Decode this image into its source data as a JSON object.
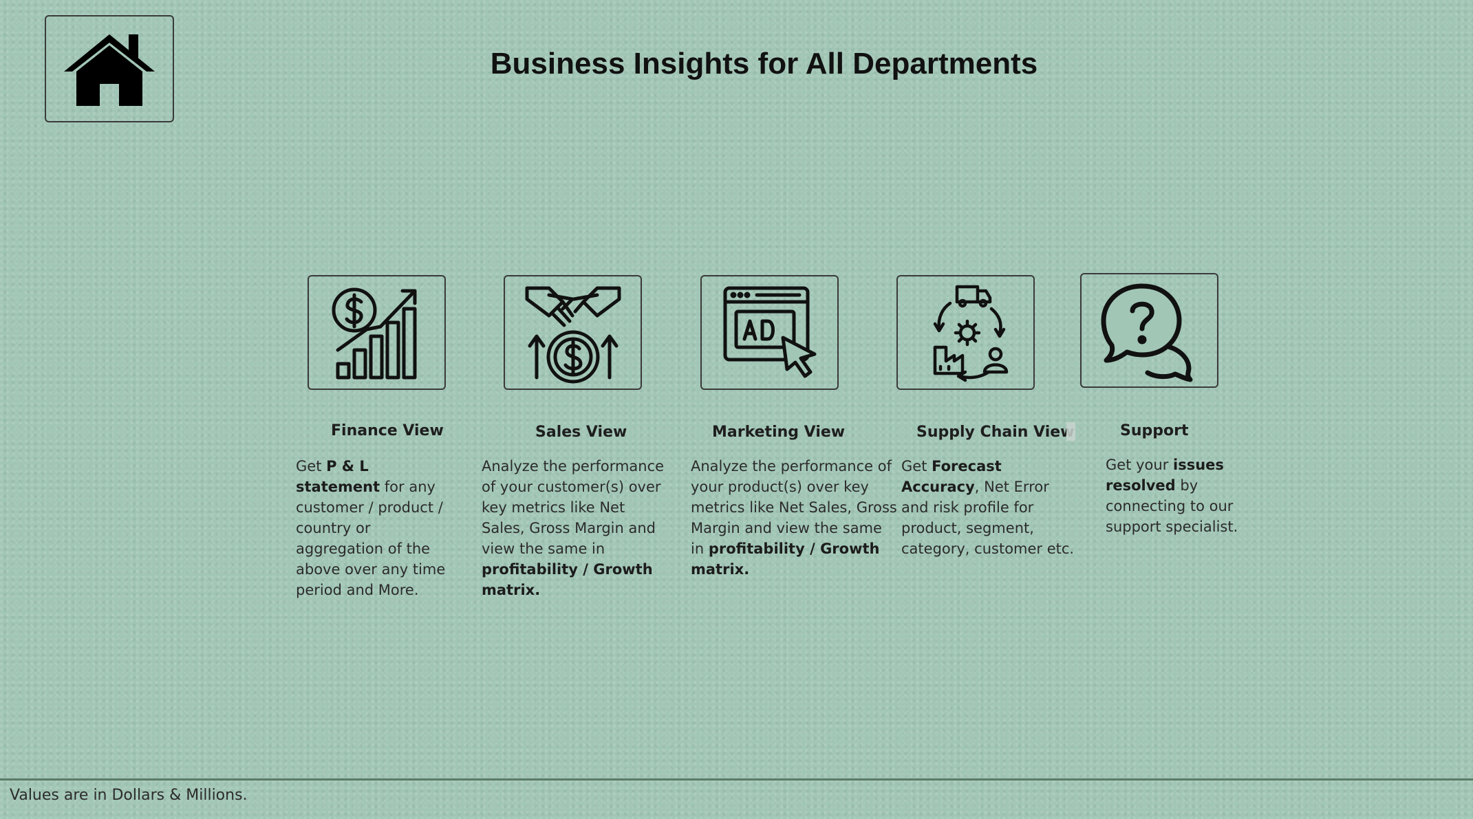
{
  "page": {
    "title": "Business Insights for All Departments"
  },
  "home": {
    "icon": "home-icon"
  },
  "cards": [
    {
      "key": "finance",
      "icon": "finance-growth-icon",
      "title": "Finance View",
      "desc_parts": [
        "Get  ",
        "P & L statement",
        " for any customer / product / country or aggregation of the above over any time period and More."
      ]
    },
    {
      "key": "sales",
      "icon": "handshake-dollar-icon",
      "title": "Sales View",
      "desc_parts": [
        "Analyze the performance of your customer(s) over key metrics like Net Sales, Gross Margin and view the same in ",
        "profitability / Growth matrix.",
        ""
      ]
    },
    {
      "key": "marketing",
      "icon": "ad-click-icon",
      "title": "Marketing View",
      "desc_parts": [
        "Analyze the performance of your product(s) over key metrics like Net Sales, Gross Margin and view the same in ",
        "profitability / Growth matrix.",
        ""
      ]
    },
    {
      "key": "supply-chain",
      "icon": "supply-cycle-icon",
      "title": "Supply Chain View",
      "desc_parts": [
        "Get ",
        "Forecast Accuracy",
        ", Net Error and risk profile for product, segment, category, customer etc."
      ]
    },
    {
      "key": "support",
      "icon": "chat-question-icon",
      "title": "Support",
      "desc_parts": [
        "Get your ",
        "issues resolved",
        " by connecting to our support specialist."
      ]
    }
  ],
  "footer": {
    "note": "Values are in Dollars & Millions."
  }
}
